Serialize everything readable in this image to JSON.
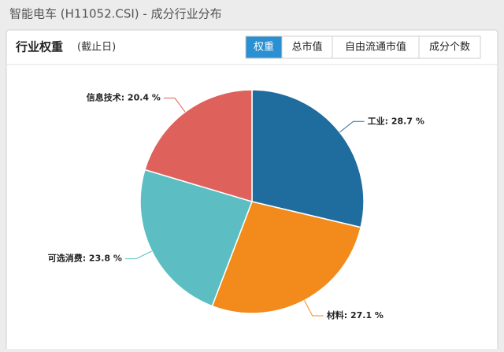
{
  "header": {
    "title": "智能电车 (H11052.CSI) - 成分行业分布"
  },
  "panel": {
    "title": "行业权重",
    "subtitle": "(截止日)",
    "tabs": [
      "权重",
      "总市值",
      "自由流通市值",
      "成分个数"
    ],
    "active_tab": 0
  },
  "chart_data": {
    "type": "pie",
    "values": [
      28.7,
      27.1,
      23.8,
      20.4
    ],
    "value_labels": [
      "工业: 28.7 %",
      "材料: 27.1 %",
      "可选消费: 23.8 %",
      "信息技术: 20.4 %"
    ],
    "colors": [
      "#1f6d9e",
      "#f28b1c",
      "#5cbec2",
      "#df615b"
    ]
  }
}
